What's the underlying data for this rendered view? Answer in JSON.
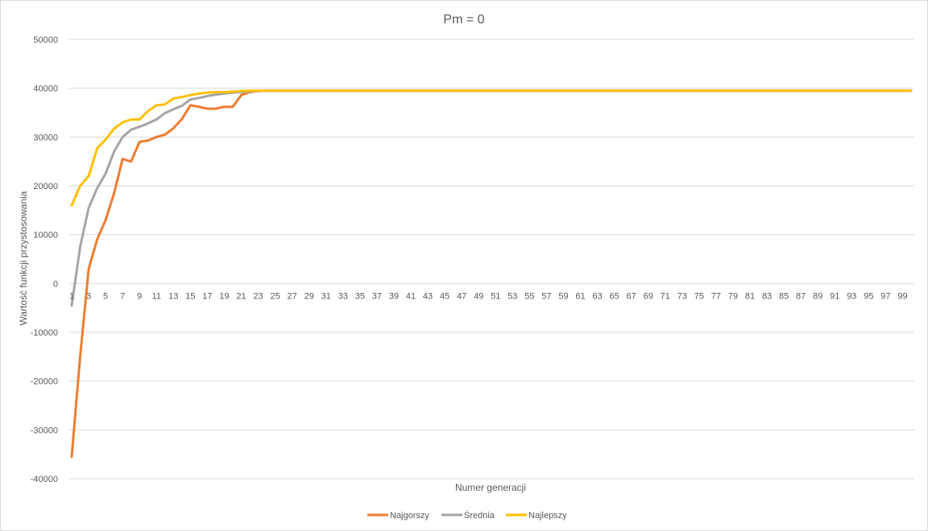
{
  "chart_data": {
    "type": "line",
    "title": "Pm = 0",
    "xlabel": "Numer  generacji",
    "ylabel": "Wartość funkcji przystosowania",
    "ylim": [
      -40000,
      50000
    ],
    "yticks": [
      "50000",
      "40000",
      "30000",
      "20000",
      "10000",
      "0",
      "-10000",
      "-20000",
      "-30000",
      "-40000"
    ],
    "x_tick_labels": [
      "1",
      "3",
      "5",
      "7",
      "9",
      "11",
      "13",
      "15",
      "17",
      "19",
      "21",
      "23",
      "25",
      "27",
      "29",
      "31",
      "33",
      "35",
      "37",
      "39",
      "41",
      "43",
      "45",
      "47",
      "49",
      "51",
      "53",
      "55",
      "57",
      "59",
      "61",
      "63",
      "65",
      "67",
      "69",
      "71",
      "73",
      "75",
      "77",
      "79",
      "81",
      "83",
      "85",
      "87",
      "89",
      "91",
      "93",
      "95",
      "97",
      "99"
    ],
    "grid": true,
    "legend_position": "bottom",
    "x": [
      1,
      2,
      3,
      4,
      5,
      6,
      7,
      8,
      9,
      10,
      11,
      12,
      13,
      14,
      15,
      16,
      17,
      18,
      19,
      20,
      21,
      22,
      23,
      24,
      25,
      26,
      27,
      28,
      29,
      30,
      31,
      32,
      33,
      34,
      35,
      36,
      37,
      38,
      39,
      40,
      41,
      42,
      43,
      44,
      45,
      46,
      47,
      48,
      49,
      50,
      51,
      52,
      53,
      54,
      55,
      56,
      57,
      58,
      59,
      60,
      61,
      62,
      63,
      64,
      65,
      66,
      67,
      68,
      69,
      70,
      71,
      72,
      73,
      74,
      75,
      76,
      77,
      78,
      79,
      80,
      81,
      82,
      83,
      84,
      85,
      86,
      87,
      88,
      89,
      90,
      91,
      92,
      93,
      94,
      95,
      96,
      97,
      98,
      99,
      100
    ],
    "series": [
      {
        "name": "Najgorszy",
        "color": "#ED7D31",
        "values": [
          -35500,
          -15000,
          3000,
          9000,
          13000,
          18500,
          25500,
          25000,
          29000,
          29300,
          30000,
          30500,
          31800,
          33700,
          36500,
          36200,
          35800,
          35800,
          36200,
          36200,
          38600,
          39200,
          39400,
          39500,
          39500,
          39500,
          39500,
          39500,
          39500,
          39500,
          39500,
          39500,
          39500,
          39500,
          39500,
          39500,
          39500,
          39500,
          39500,
          39500,
          39500,
          39500,
          39500,
          39500,
          39500,
          39500,
          39500,
          39500,
          39500,
          39500,
          39500,
          39500,
          39500,
          39500,
          39500,
          39500,
          39500,
          39500,
          39500,
          39500,
          39500,
          39500,
          39500,
          39500,
          39500,
          39500,
          39500,
          39500,
          39500,
          39500,
          39500,
          39500,
          39500,
          39500,
          39500,
          39500,
          39500,
          39500,
          39500,
          39500,
          39500,
          39500,
          39500,
          39500,
          39500,
          39500,
          39500,
          39500,
          39500,
          39500,
          39500,
          39500,
          39500,
          39500,
          39500,
          39500,
          39500,
          39500,
          39500,
          39500
        ]
      },
      {
        "name": "Średnia",
        "color": "#A5A5A5",
        "values": [
          -4500,
          7500,
          15500,
          19500,
          22500,
          27000,
          30000,
          31500,
          32100,
          32800,
          33600,
          34900,
          35700,
          36400,
          37700,
          38000,
          38400,
          38700,
          38900,
          39100,
          39200,
          39300,
          39400,
          39500,
          39500,
          39500,
          39500,
          39500,
          39500,
          39500,
          39500,
          39500,
          39500,
          39500,
          39500,
          39500,
          39500,
          39500,
          39500,
          39500,
          39500,
          39500,
          39500,
          39500,
          39500,
          39500,
          39500,
          39500,
          39500,
          39500,
          39500,
          39500,
          39500,
          39500,
          39500,
          39500,
          39500,
          39500,
          39500,
          39500,
          39500,
          39500,
          39500,
          39500,
          39500,
          39500,
          39500,
          39500,
          39500,
          39500,
          39500,
          39500,
          39500,
          39500,
          39500,
          39500,
          39500,
          39500,
          39500,
          39500,
          39500,
          39500,
          39500,
          39500,
          39500,
          39500,
          39500,
          39500,
          39500,
          39500,
          39500,
          39500,
          39500,
          39500,
          39500,
          39500,
          39500,
          39500,
          39500,
          39500
        ]
      },
      {
        "name": "Najlepszy",
        "color": "#FFC000",
        "values": [
          16000,
          20000,
          22000,
          27700,
          29500,
          31700,
          33000,
          33600,
          33600,
          35300,
          36500,
          36700,
          37900,
          38200,
          38600,
          38900,
          39100,
          39200,
          39200,
          39300,
          39400,
          39500,
          39500,
          39500,
          39500,
          39500,
          39500,
          39500,
          39500,
          39500,
          39500,
          39500,
          39500,
          39500,
          39500,
          39500,
          39500,
          39500,
          39500,
          39500,
          39500,
          39500,
          39500,
          39500,
          39500,
          39500,
          39500,
          39500,
          39500,
          39500,
          39500,
          39500,
          39500,
          39500,
          39500,
          39500,
          39500,
          39500,
          39500,
          39500,
          39500,
          39500,
          39500,
          39500,
          39500,
          39500,
          39500,
          39500,
          39500,
          39500,
          39500,
          39500,
          39500,
          39500,
          39500,
          39500,
          39500,
          39500,
          39500,
          39500,
          39500,
          39500,
          39500,
          39500,
          39500,
          39500,
          39500,
          39500,
          39500,
          39500,
          39500,
          39500,
          39500,
          39500,
          39500,
          39500,
          39500,
          39500,
          39500,
          39500
        ]
      }
    ]
  }
}
